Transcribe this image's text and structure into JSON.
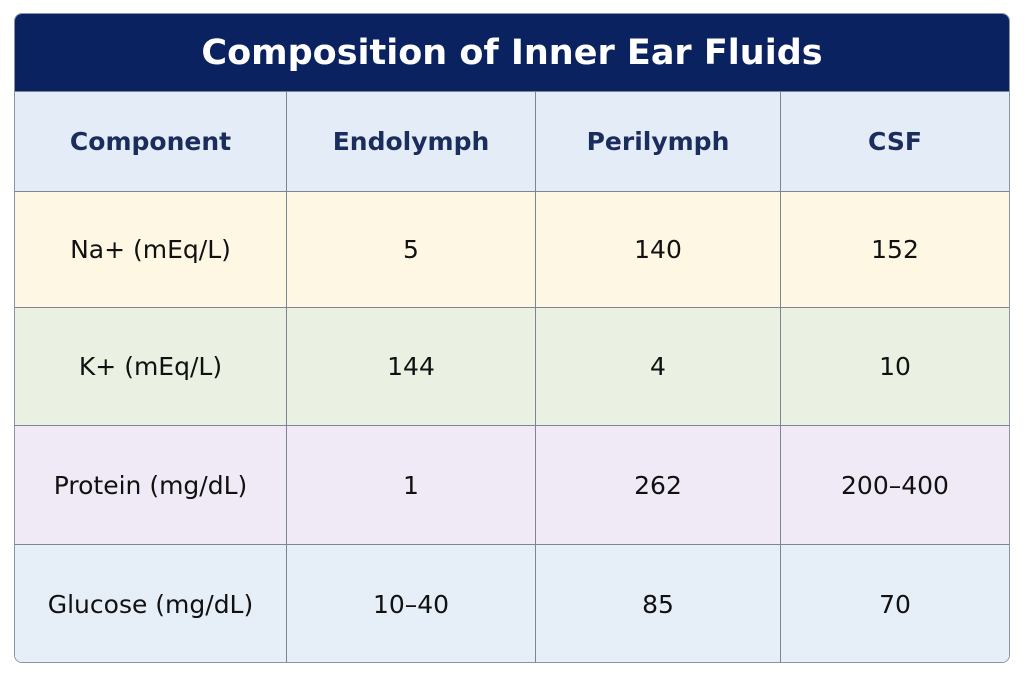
{
  "title": "Composition of Inner Ear Fluids",
  "table": {
    "header": [
      "Component",
      "Endolymph",
      "Perilymph",
      "CSF"
    ],
    "rows": [
      [
        "Na+ (mEq/L)",
        5,
        140,
        152
      ],
      [
        "K+ (mEq/L)",
        144,
        4,
        10
      ],
      [
        "Protein (mg/dL)",
        1,
        262,
        "200–400"
      ],
      [
        "Glucose (mg/dL)",
        "10–40",
        85,
        70
      ]
    ]
  }
}
